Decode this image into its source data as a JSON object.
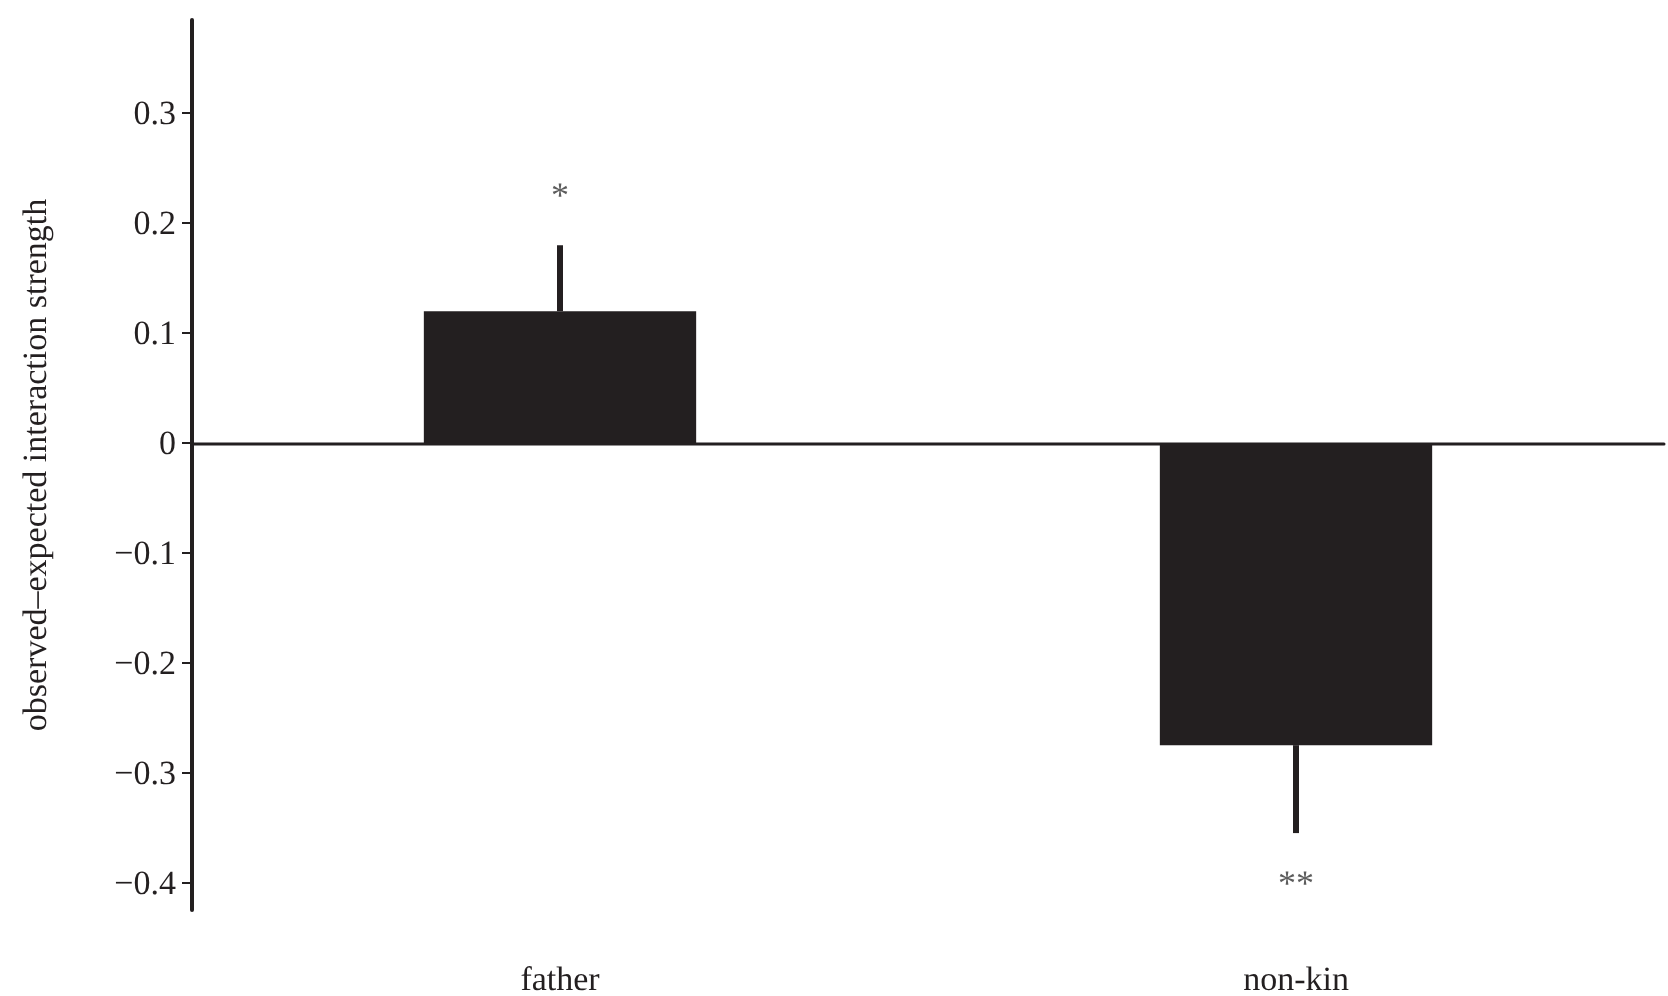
{
  "chart_data": {
    "type": "bar",
    "ylabel": "observed–expected interaction strength",
    "categories": [
      "father",
      "non-kin"
    ],
    "values": [
      0.12,
      -0.275
    ],
    "errors": [
      [
        0.12,
        0.18
      ],
      [
        -0.355,
        -0.275
      ]
    ],
    "color": "#231f20",
    "ylim": [
      -0.425,
      0.385
    ],
    "yticks": [
      {
        "value": -0.4,
        "label": "−0.4"
      },
      {
        "value": -0.3,
        "label": "−0.3"
      },
      {
        "value": -0.2,
        "label": "−0.2"
      },
      {
        "value": -0.1,
        "label": "−0.1"
      },
      0,
      0.1,
      0.2,
      0.3
    ],
    "annotations": [
      "*",
      "**"
    ]
  }
}
